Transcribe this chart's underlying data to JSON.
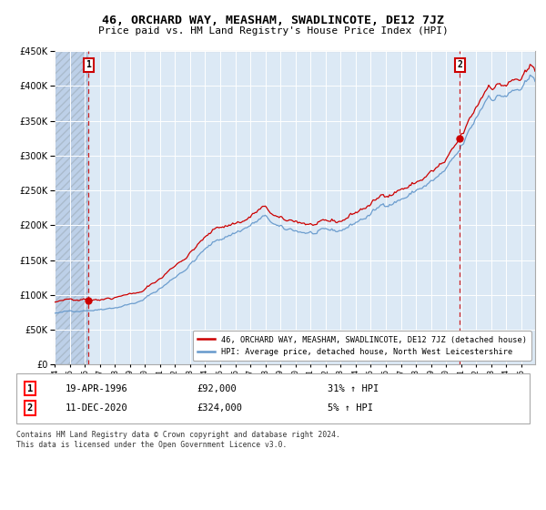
{
  "title": "46, ORCHARD WAY, MEASHAM, SWADLINCOTE, DE12 7JZ",
  "subtitle": "Price paid vs. HM Land Registry's House Price Index (HPI)",
  "sale1_date": "19-APR-1996",
  "sale1_price": 92000,
  "sale1_label": "31% ↑ HPI",
  "sale2_date": "11-DEC-2020",
  "sale2_price": 324000,
  "sale2_label": "5% ↑ HPI",
  "legend1": "46, ORCHARD WAY, MEASHAM, SWADLINCOTE, DE12 7JZ (detached house)",
  "legend2": "HPI: Average price, detached house, North West Leicestershire",
  "footer": "Contains HM Land Registry data © Crown copyright and database right 2024.\nThis data is licensed under the Open Government Licence v3.0.",
  "ylim": [
    0,
    450000
  ],
  "yticks": [
    0,
    50000,
    100000,
    150000,
    200000,
    250000,
    300000,
    350000,
    400000,
    450000
  ],
  "bg_color": "#dce9f5",
  "grid_color": "#ffffff",
  "red_color": "#cc0000",
  "blue_color": "#6699cc",
  "hatch_region_color": "#bdd0e8"
}
